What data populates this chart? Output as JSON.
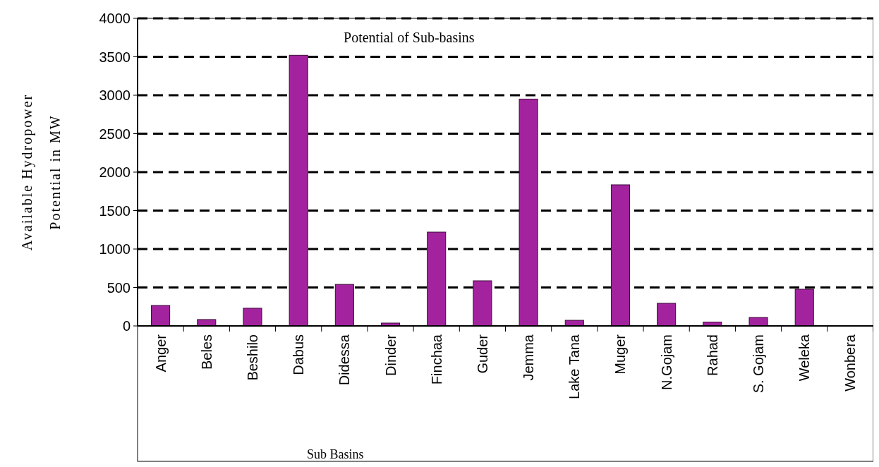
{
  "chart_data": {
    "type": "bar",
    "title": "Potential of Sub-basins",
    "xlabel": "Sub Basins",
    "ylabel": "Available Hydropower\nPotential in MW",
    "categories": [
      "Anger",
      "Beles",
      "Beshilo",
      "Dabus",
      "Didessa",
      "Dinder",
      "Finchaa",
      "Guder",
      "Jemma",
      "Lake Tana",
      "Muger",
      "N.Gojam",
      "Rahad",
      "S. Gojam",
      "Weleka",
      "Wonbera"
    ],
    "values": [
      266,
      83,
      230,
      3520,
      540,
      37,
      1220,
      587,
      2950,
      73,
      1835,
      294,
      50,
      110,
      477,
      0
    ],
    "color": "#a3239f",
    "ylim": [
      0,
      4000
    ],
    "yticks": [
      0,
      500,
      1000,
      1500,
      2000,
      2500,
      3000,
      3500,
      4000
    ],
    "grid": "y"
  }
}
